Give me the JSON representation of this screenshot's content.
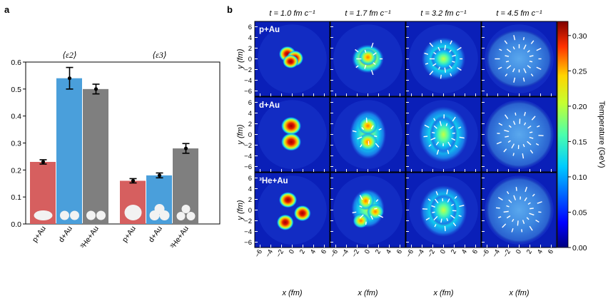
{
  "chart_data": [
    {
      "panel": "a",
      "type": "bar",
      "groups": [
        "⟨ε2⟩",
        "⟨ε3⟩"
      ],
      "categories": [
        "p+Au",
        "d+Au",
        "3He+Au"
      ],
      "category_labels": [
        "p+Au",
        "d+Au",
        "³He+Au"
      ],
      "series": [
        {
          "name": "⟨ε2⟩",
          "values": [
            0.23,
            0.54,
            0.5
          ],
          "errors": [
            0.008,
            0.04,
            0.018
          ]
        },
        {
          "name": "⟨ε3⟩",
          "values": [
            0.16,
            0.18,
            0.28
          ],
          "errors": [
            0.008,
            0.009,
            0.018
          ]
        }
      ],
      "colors": [
        "#d65f5f",
        "#4a9fdb",
        "#7f7f7f"
      ],
      "ylim": [
        0,
        0.6
      ],
      "yticks": [
        "0.0",
        "0.1",
        "0.2",
        "0.3",
        "0.4",
        "0.5",
        "0.6"
      ]
    },
    {
      "panel": "b",
      "type": "heatmap",
      "time_labels": [
        "t = 1.0 fm c⁻¹",
        "t = 1.7 fm c⁻¹",
        "t = 3.2 fm c⁻¹",
        "t = 4.5 fm c⁻¹"
      ],
      "row_labels": [
        "p+Au",
        "d+Au",
        "³He+Au"
      ],
      "xlabel": "x (fm)",
      "ylabel": "y (fm)",
      "xlim": [
        -7,
        7
      ],
      "ylim": [
        -7,
        7
      ],
      "ticks": [
        "−6",
        "−4",
        "−2",
        "0",
        "2",
        "4",
        "6"
      ],
      "colorbar": {
        "label": "Temperature (GeV)",
        "range": [
          0,
          0.32
        ],
        "ticks": [
          "0.00",
          "0.05",
          "0.10",
          "0.15",
          "0.20",
          "0.25",
          "0.30"
        ]
      }
    }
  ],
  "panel_labels": {
    "a": "a",
    "b": "b"
  }
}
